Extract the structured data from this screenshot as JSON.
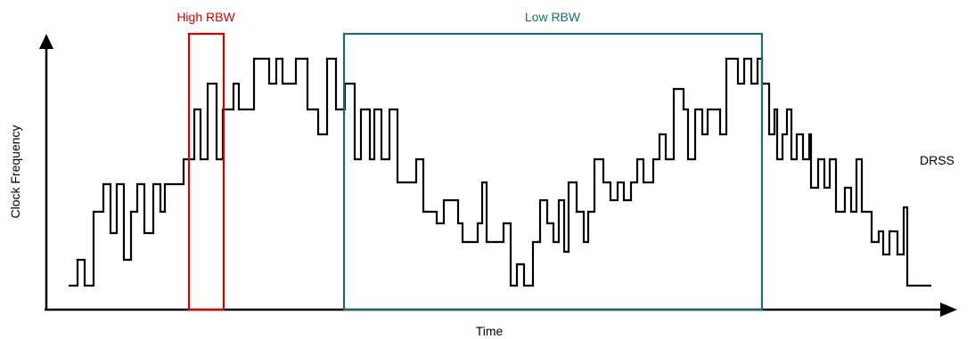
{
  "labels": {
    "high_rbw": "High RBW",
    "low_rbw": "Low RBW",
    "y_axis": "Clock Frequency",
    "x_axis": "Time",
    "signal_name": "DRSS"
  },
  "colors": {
    "high_rbw": "#d40000",
    "low_rbw": "#1f6b6b",
    "signal": "#000000",
    "axis": "#000000"
  },
  "icons": {
    "x_axis_arrow": "arrow-right-icon",
    "y_axis_arrow": "arrow-up-icon"
  }
}
